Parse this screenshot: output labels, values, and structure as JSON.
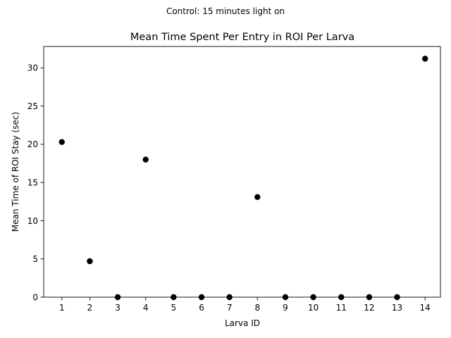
{
  "figure": {
    "suptitle": "Control: 15 minutes light on"
  },
  "chart_data": {
    "type": "scatter",
    "title": "Mean Time Spent Per Entry in ROI Per Larva",
    "xlabel": "Larva ID",
    "ylabel": "Mean Time of ROI Stay (sec)",
    "x": [
      1,
      2,
      3,
      4,
      5,
      6,
      7,
      8,
      9,
      10,
      11,
      12,
      13,
      14
    ],
    "y": [
      20.3,
      4.7,
      0,
      18.0,
      0,
      0,
      0,
      13.1,
      0,
      0,
      0,
      0,
      0,
      31.2
    ],
    "xlim": [
      0.35,
      14.55
    ],
    "ylim": [
      0,
      32.8
    ],
    "xticks": [
      1,
      2,
      3,
      4,
      5,
      6,
      7,
      8,
      9,
      10,
      11,
      12,
      13,
      14
    ],
    "xtick_labels": [
      "1",
      "2",
      "3",
      "4",
      "5",
      "6",
      "7",
      "8",
      "9",
      "10",
      "11",
      "12",
      "13",
      "14"
    ],
    "yticks": [
      0,
      5,
      10,
      15,
      20,
      25,
      30
    ],
    "ytick_labels": [
      "0",
      "5",
      "10",
      "15",
      "20",
      "25",
      "30"
    ],
    "grid": false,
    "marker_color": "#000000"
  }
}
